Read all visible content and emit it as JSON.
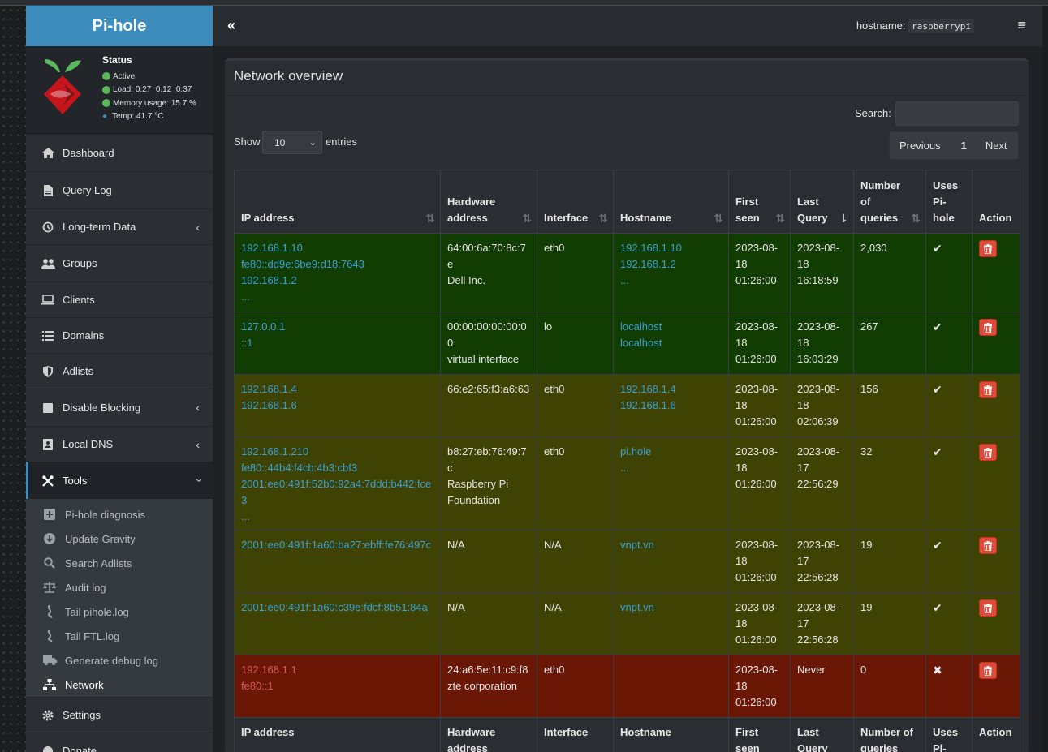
{
  "app": {
    "title": "Pi-hole"
  },
  "status": {
    "title": "Status",
    "active": "Active",
    "load_label": "Load:",
    "load_values": "0.27  0.12  0.37",
    "memory_label": "Memory usage:",
    "memory_value": "15.7 %",
    "temp_label": "Temp:",
    "temp_value": "41.7 °C"
  },
  "sidebar": {
    "items": [
      {
        "label": "Dashboard",
        "icon": "home-icon"
      },
      {
        "label": "Query Log",
        "icon": "file-icon"
      },
      {
        "label": "Long-term Data",
        "icon": "history-icon"
      },
      {
        "label": "Groups",
        "icon": "users-icon"
      },
      {
        "label": "Clients",
        "icon": "laptop-icon"
      },
      {
        "label": "Domains",
        "icon": "list-icon"
      },
      {
        "label": "Adlists",
        "icon": "shield-icon"
      },
      {
        "label": "Disable Blocking",
        "icon": "stop-icon"
      },
      {
        "label": "Local DNS",
        "icon": "address-book-icon"
      },
      {
        "label": "Tools",
        "icon": "tools-icon"
      },
      {
        "label": "Settings",
        "icon": "gear-icon"
      },
      {
        "label": "Donate",
        "icon": "donate-icon"
      }
    ],
    "tools_sub": [
      {
        "label": "Pi-hole diagnosis",
        "icon": "diagnosis-icon"
      },
      {
        "label": "Update Gravity",
        "icon": "download-icon"
      },
      {
        "label": "Search Adlists",
        "icon": "search-icon"
      },
      {
        "label": "Audit log",
        "icon": "balance-icon"
      },
      {
        "label": "Tail pihole.log",
        "icon": "log-icon"
      },
      {
        "label": "Tail FTL.log",
        "icon": "log-icon"
      },
      {
        "label": "Generate debug log",
        "icon": "ambulance-icon"
      },
      {
        "label": "Network",
        "icon": "network-icon"
      }
    ]
  },
  "header": {
    "toggle": "«",
    "hostname_label": "hostname:",
    "hostname_value": "raspberrypi",
    "menu": "≡"
  },
  "box": {
    "title": "Network overview",
    "search_label": "Search:",
    "search_value": "",
    "show_label": "Show",
    "show_value": "10",
    "entries_label": "entries",
    "pager_prev": "Previous",
    "pager_page": "1",
    "pager_next": "Next"
  },
  "table": {
    "headers": [
      "IP address",
      "Hardware address",
      "Interface",
      "Hostname",
      "First seen",
      "Last Query",
      "Number of queries",
      "Uses Pi-hole",
      "Action"
    ],
    "footers": [
      "IP address",
      "Hardware address",
      "Interface",
      "Hostname",
      "First seen",
      "Last Query",
      "Number of queries",
      "Uses Pi-hole",
      "Action"
    ],
    "rows": [
      {
        "color": "green",
        "ip": [
          "192.168.1.10",
          "fe80::dd9e:6be9:d18:7643",
          "192.168.1.2",
          "..."
        ],
        "hw": [
          "64:00:6a:70:8c:7e",
          "Dell Inc."
        ],
        "iface": "eth0",
        "host": [
          "192.168.1.10",
          "192.168.1.2",
          "..."
        ],
        "first": [
          "2023-08-",
          "18",
          "01:26:00"
        ],
        "last": [
          "2023-08-",
          "18",
          "16:18:59"
        ],
        "queries": "2,030",
        "uses": "✔"
      },
      {
        "color": "green",
        "ip": [
          "127.0.0.1",
          "::1"
        ],
        "hw": [
          "00:00:00:00:00:00",
          "virtual interface"
        ],
        "iface": "lo",
        "host": [
          "localhost",
          "localhost"
        ],
        "first": [
          "2023-08-",
          "18",
          "01:26:00"
        ],
        "last": [
          "2023-08-",
          "18",
          "16:03:29"
        ],
        "queries": "267",
        "uses": "✔"
      },
      {
        "color": "olive",
        "ip": [
          "192.168.1.4",
          "192.168.1.6"
        ],
        "hw": [
          "66:e2:65:f3:a6:63"
        ],
        "iface": "eth0",
        "host": [
          "192.168.1.4",
          "192.168.1.6"
        ],
        "first": [
          "2023-08-",
          "18",
          "01:26:00"
        ],
        "last": [
          "2023-08-",
          "18",
          "02:06:39"
        ],
        "queries": "156",
        "uses": "✔"
      },
      {
        "color": "olive",
        "ip": [
          "192.168.1.210",
          "fe80::44b4:f4cb:4b3:cbf3",
          "2001:ee0:491f:52b0:92a4:7ddd:b442:fce3",
          "..."
        ],
        "hw": [
          "b8:27:eb:76:49:7c",
          "Raspberry Pi",
          "Foundation"
        ],
        "iface": "eth0",
        "host": [
          "pi.hole",
          "..."
        ],
        "first": [
          "2023-08-",
          "18",
          "01:26:00"
        ],
        "last": [
          "2023-08-",
          "17",
          "22:56:29"
        ],
        "queries": "32",
        "uses": "✔"
      },
      {
        "color": "olive",
        "ip": [
          "2001:ee0:491f:1a60:ba27:ebff:fe76:497c"
        ],
        "hw": [
          "N/A"
        ],
        "iface": "N/A",
        "host": [
          "vnpt.vn"
        ],
        "first": [
          "2023-08-",
          "18",
          "01:26:00"
        ],
        "last": [
          "2023-08-",
          "17",
          "22:56:28"
        ],
        "queries": "19",
        "uses": "✔"
      },
      {
        "color": "olive",
        "ip": [
          "2001:ee0:491f:1a60:c39e:fdcf:8b51:84a"
        ],
        "hw": [
          "N/A"
        ],
        "iface": "N/A",
        "host": [
          "vnpt.vn"
        ],
        "first": [
          "2023-08-",
          "18",
          "01:26:00"
        ],
        "last": [
          "2023-08-",
          "17",
          "22:56:28"
        ],
        "queries": "19",
        "uses": "✔"
      },
      {
        "color": "red",
        "ip": [
          "192.168.1.1",
          "fe80::1"
        ],
        "hw": [
          "24:a6:5e:11:c9:f8",
          "zte corporation"
        ],
        "iface": "eth0",
        "host": [],
        "first": [
          "2023-08-",
          "18",
          "01:26:00"
        ],
        "last": [
          "Never"
        ],
        "queries": "0",
        "uses": "✖"
      }
    ]
  }
}
